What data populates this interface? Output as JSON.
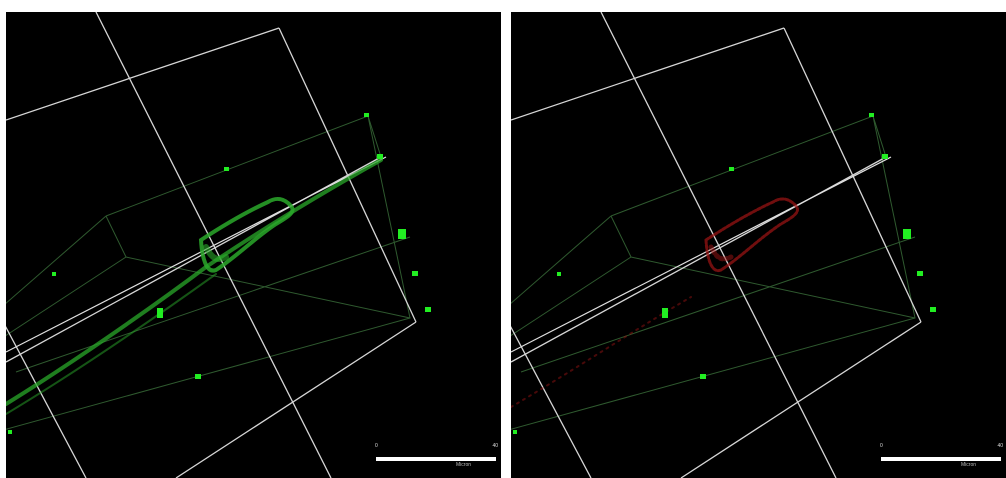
{
  "image": {
    "description_free": true,
    "panels": [
      {
        "id": "left",
        "signal_channel": "green",
        "signal_color": "#2bd12b",
        "scale_bar": {
          "start_label": "0",
          "end_label": "40",
          "unit_label": "Micron"
        }
      },
      {
        "id": "right",
        "signal_channel": "red",
        "signal_color": "#c01818",
        "scale_bar": {
          "start_label": "0",
          "end_label": "40",
          "unit_label": "Micron"
        }
      }
    ],
    "colors": {
      "background": "#000000",
      "bounding_box": "#d8d8d8",
      "inner_box": "#3a6a3a",
      "marker": "#22ee22"
    }
  }
}
